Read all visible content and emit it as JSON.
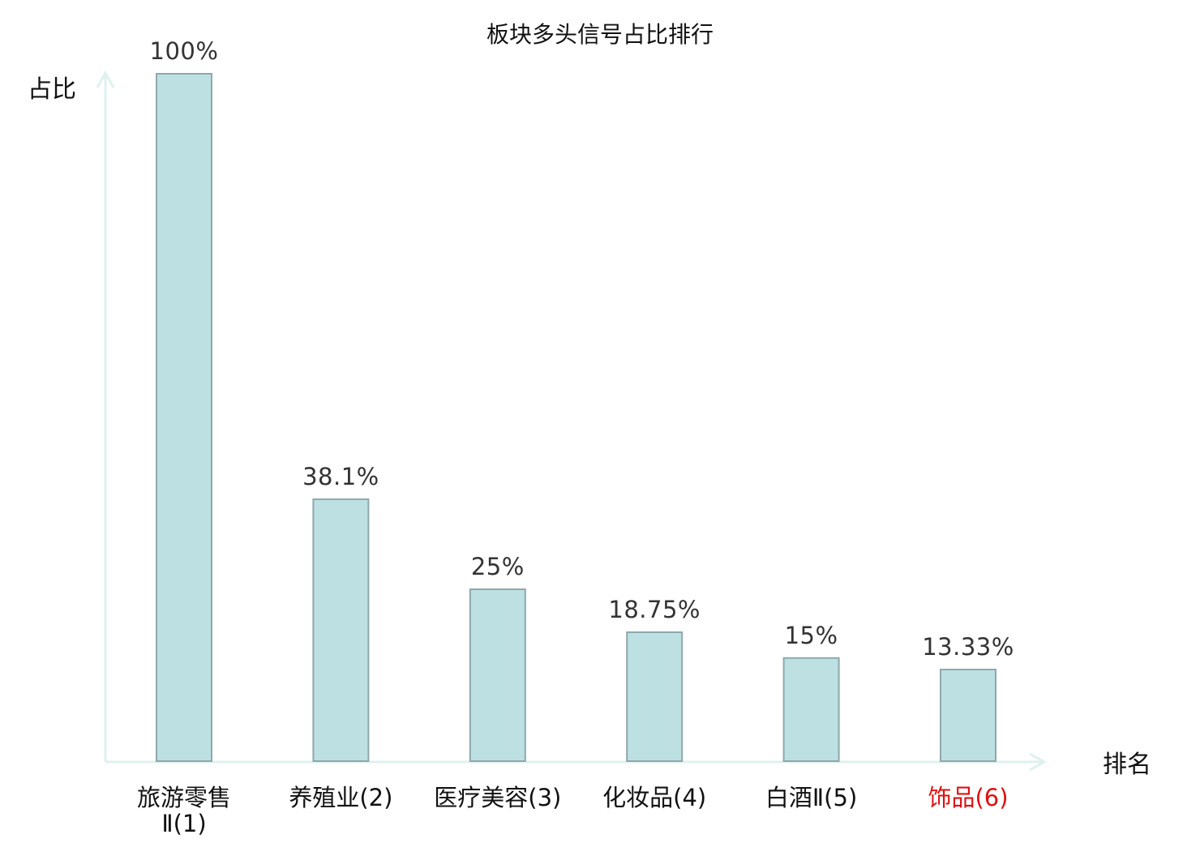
{
  "chart_data": {
    "type": "bar",
    "title": "板块多头信号占比排行",
    "xlabel": "排名",
    "ylabel": "占比",
    "categories": [
      "旅游零售Ⅱ(1)",
      "养殖业(2)",
      "医疗美容(3)",
      "化妆品(4)",
      "白酒Ⅱ(5)",
      "饰品(6)"
    ],
    "category_lines": [
      [
        "旅游零售",
        "Ⅱ(1)"
      ],
      [
        "养殖业(2)"
      ],
      [
        "医疗美容(3)"
      ],
      [
        "化妆品(4)"
      ],
      [
        "白酒Ⅱ(5)"
      ],
      [
        "饰品(6)"
      ]
    ],
    "values": [
      100,
      38.1,
      25,
      18.75,
      15,
      13.33
    ],
    "value_labels": [
      "100%",
      "38.1%",
      "25%",
      "18.75%",
      "15%",
      "13.33%"
    ],
    "highlight_index": 5,
    "ylim": [
      0,
      100
    ],
    "grid": false,
    "legend": "none",
    "colors": {
      "bar_fill": "#bde0e3",
      "bar_stroke": "#8fa8ab",
      "axis": "#dff1ee",
      "highlight_label": "#dd1111",
      "normal_label": "#111111"
    }
  }
}
